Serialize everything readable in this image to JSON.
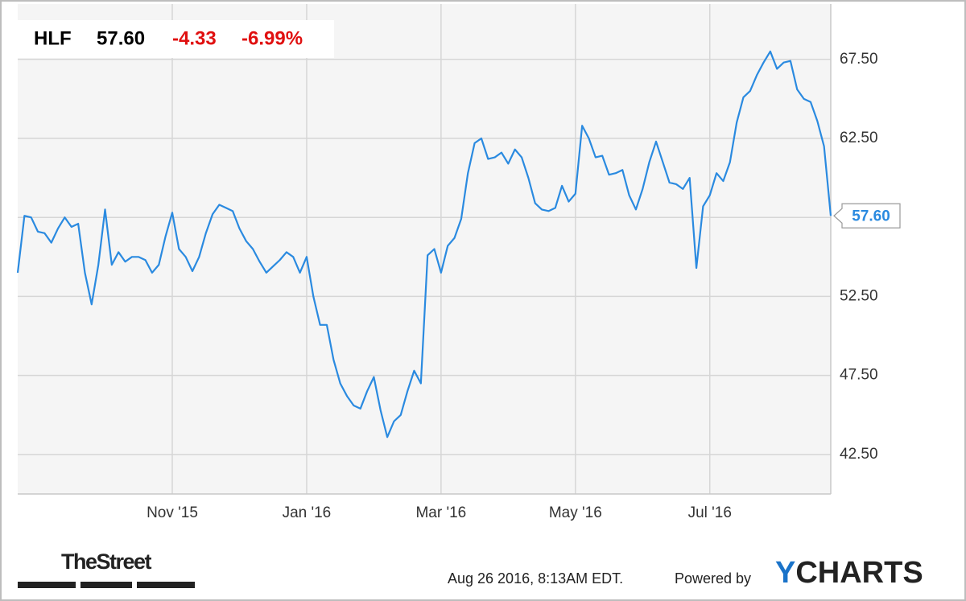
{
  "chart_data": {
    "type": "line",
    "header": {
      "symbol": "HLF",
      "price": "57.60",
      "change": "-4.33",
      "change_pct": "-6.99%"
    },
    "categories": [
      null,
      null,
      null,
      null,
      null,
      null,
      null,
      null,
      null,
      null,
      null,
      null,
      null,
      null,
      null,
      null,
      null,
      null,
      null,
      null,
      null,
      null,
      null,
      "Nov '15",
      null,
      null,
      null,
      null,
      null,
      null,
      null,
      null,
      null,
      null,
      null,
      null,
      null,
      null,
      null,
      null,
      null,
      null,
      null,
      "Jan '16",
      null,
      null,
      null,
      null,
      null,
      null,
      null,
      null,
      null,
      null,
      null,
      null,
      null,
      null,
      null,
      null,
      null,
      null,
      null,
      "Mar '16",
      null,
      null,
      null,
      null,
      null,
      null,
      null,
      null,
      null,
      null,
      null,
      null,
      null,
      null,
      null,
      null,
      null,
      null,
      null,
      "May '16",
      null,
      null,
      null,
      null,
      null,
      null,
      null,
      null,
      null,
      null,
      null,
      null,
      null,
      null,
      null,
      null,
      null,
      null,
      null,
      "Jul '16",
      null,
      null,
      null,
      null,
      null,
      null,
      null,
      null,
      null,
      null,
      null,
      null,
      null,
      null,
      null,
      null,
      null,
      null
    ],
    "series": [
      {
        "name": "HLF",
        "color": "#2a8ae0",
        "values": [
          54.0,
          57.6,
          57.5,
          56.6,
          56.5,
          55.9,
          56.8,
          57.5,
          56.9,
          57.1,
          54.0,
          52.0,
          54.5,
          58.0,
          54.5,
          55.3,
          54.7,
          55.0,
          55.0,
          54.8,
          54.0,
          54.5,
          56.3,
          57.8,
          55.5,
          55.0,
          54.1,
          55.0,
          56.5,
          57.7,
          58.3,
          58.1,
          57.9,
          56.8,
          56.0,
          55.5,
          54.7,
          54.0,
          54.4,
          54.8,
          55.3,
          55.0,
          54.0,
          55.0,
          52.5,
          50.7,
          50.7,
          48.5,
          47.0,
          46.2,
          45.6,
          45.4,
          46.5,
          47.4,
          45.3,
          43.6,
          44.6,
          45.0,
          46.5,
          47.8,
          47.0,
          55.1,
          55.5,
          54.0,
          55.7,
          56.2,
          57.4,
          60.3,
          62.2,
          62.5,
          61.2,
          61.3,
          61.6,
          60.9,
          61.8,
          61.3,
          60.0,
          58.4,
          58.0,
          57.9,
          58.1,
          59.5,
          58.5,
          59.0,
          63.3,
          62.5,
          61.3,
          61.4,
          60.2,
          60.3,
          60.5,
          58.9,
          58.0,
          59.3,
          61.0,
          62.3,
          61.0,
          59.7,
          59.6,
          59.3,
          60.0,
          54.3,
          58.2,
          58.9,
          60.3,
          59.8,
          61.0,
          63.5,
          65.1,
          65.5,
          66.5,
          67.3,
          68.0,
          66.9,
          67.3,
          67.4,
          65.6,
          65.0,
          64.8,
          63.6,
          62.0,
          57.6
        ]
      }
    ],
    "ylim": [
      40,
      71
    ],
    "yticks": [
      {
        "value": 42.5,
        "label": "42.50"
      },
      {
        "value": 47.5,
        "label": "47.50"
      },
      {
        "value": 52.5,
        "label": "52.50"
      },
      {
        "value": 57.5,
        "label": "57.50"
      },
      {
        "value": 62.5,
        "label": "62.50"
      },
      {
        "value": 67.5,
        "label": "67.50"
      }
    ],
    "grid": true,
    "footer": {
      "brand": "TheStreet",
      "timestamp": "Aug 26 2016, 8:13AM EDT.",
      "powered": "Powered by",
      "logo": "YCHARTS"
    }
  }
}
